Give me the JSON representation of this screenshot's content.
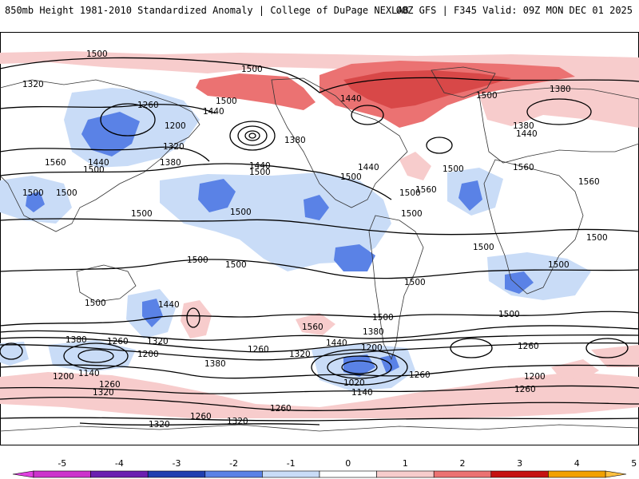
{
  "header": {
    "title": "850mb Height 1981-2010 Standardized Anomaly | College of DuPage NEXLAB",
    "run_info": "00Z GFS | F345 Valid: 09Z MON DEC 01 2025"
  },
  "map": {
    "contour_labels": {
      "l1500_a": "1500",
      "l1500_b": "1500",
      "l1500_c": "1500",
      "l1500_d": "1500",
      "l1500_e": "1500",
      "l1500_f": "1500",
      "l1500_g": "1500",
      "l1500_h": "1500",
      "l1500_i": "1500",
      "l1500_j": "1500",
      "l1500_k": "1500",
      "l1500_l": "1500",
      "l1500_m": "1500",
      "l1500_n": "1500",
      "l1500_o": "1500",
      "l1500_p": "1500",
      "l1500_q": "1500",
      "l1500_r": "1500",
      "l1500_s": "1500",
      "l1500_t": "1500",
      "l1500_u": "1500",
      "l1500_v": "1500",
      "l1500_w": "1500",
      "l1320_a": "1320",
      "l1320_b": "1320",
      "l1320_c": "1320",
      "l1320_d": "1320",
      "l1320_e": "1320",
      "l1320_f": "1320",
      "l1320_g": "1320",
      "l1260_a": "1260",
      "l1260_b": "1260",
      "l1260_c": "1260",
      "l1260_d": "1260",
      "l1260_e": "1260",
      "l1260_f": "1260",
      "l1260_g": "1260",
      "l1260_h": "1260",
      "l1260_i": "1260",
      "l1200_a": "1200",
      "l1200_b": "1200",
      "l1200_c": "1200",
      "l1200_d": "1200",
      "l1200_e": "1200",
      "l1200_f": "1200",
      "l1380_a": "1380",
      "l1380_b": "1380",
      "l1380_c": "1380",
      "l1380_d": "1380",
      "l1380_e": "1380",
      "l1380_f": "1380",
      "l1380_g": "1380",
      "l1440_a": "1440",
      "l1440_b": "1440",
      "l1440_c": "1440",
      "l1440_d": "1440",
      "l1440_e": "1440",
      "l1440_f": "1440",
      "l1440_g": "1440",
      "l1440_h": "1440",
      "l1560_a": "1560",
      "l1560_b": "1560",
      "l1560_c": "1560",
      "l1560_d": "1560",
      "l1560_e": "1560",
      "l1140_a": "1140",
      "l1140_b": "1140",
      "l1020_a": "1020"
    }
  },
  "legend": {
    "ticks": [
      "-5",
      "-4",
      "-3",
      "-2",
      "-1",
      "0",
      "1",
      "2",
      "3",
      "4",
      "5"
    ],
    "bins": [
      {
        "from": -5,
        "to": -4,
        "color": "#cc33cc"
      },
      {
        "from": -4,
        "to": -3,
        "color": "#6a1fb0"
      },
      {
        "from": -3,
        "to": -2,
        "color": "#1f3fb0"
      },
      {
        "from": -2,
        "to": -1,
        "color": "#5a82e6"
      },
      {
        "from": -1,
        "to": 0,
        "color": "#c9dcf7"
      },
      {
        "from": 0,
        "to": 1,
        "color": "#ffffff"
      },
      {
        "from": 1,
        "to": 2,
        "color": "#f7cccc"
      },
      {
        "from": 2,
        "to": 3,
        "color": "#eb7272"
      },
      {
        "from": 3,
        "to": 4,
        "color": "#c51212"
      },
      {
        "from": 4,
        "to": 5,
        "color": "#f2a100"
      }
    ],
    "low_end_color": "#e040e0",
    "high_end_color": "#ffc040"
  },
  "colors": {
    "pos1": "#f7cccc",
    "pos2": "#eb7272",
    "pos3": "#d33a3a",
    "neg1": "#c9dcf7",
    "neg2": "#5a82e6",
    "neg3": "#2c50c8"
  }
}
